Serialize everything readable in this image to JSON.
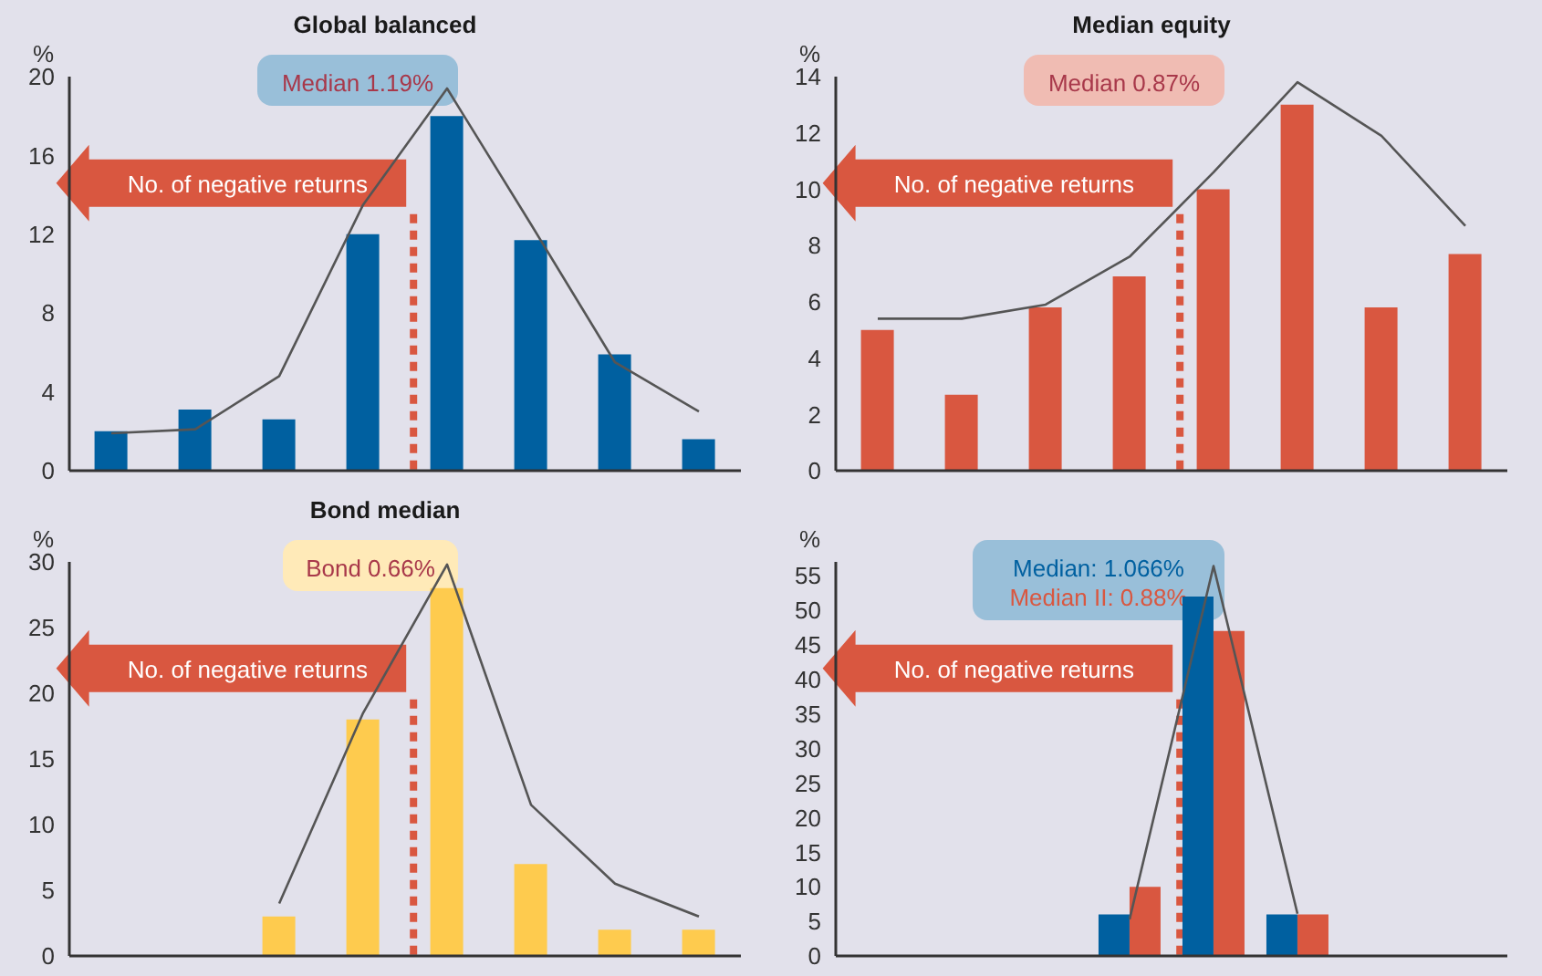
{
  "chart_data": [
    {
      "type": "bar",
      "title": "Global balanced",
      "ylabel": "%",
      "categories": [
        null,
        null,
        null,
        null,
        null,
        null,
        null,
        null
      ],
      "ylim": [
        0,
        20
      ],
      "yticks": [
        0,
        4,
        8,
        12,
        16,
        20
      ],
      "tick_labels": "y",
      "series": [
        {
          "color": "#0060a0",
          "values": [
            2,
            3.1,
            2.6,
            12,
            18,
            11.7,
            5.9,
            1.6
          ]
        },
        {
          "type": "line",
          "color": "#555555",
          "values": [
            1.9,
            2.1,
            4.8,
            13.5,
            19.4,
            12.5,
            5.5,
            3
          ]
        }
      ],
      "annotations": [
        "No. of negative returns",
        "Median 1.19%"
      ]
    },
    {
      "type": "bar",
      "title": "Median equity",
      "ylabel": "%",
      "categories": [
        null,
        null,
        null,
        null,
        null,
        null,
        null,
        null
      ],
      "ylim": [
        0,
        14
      ],
      "yticks": [
        0,
        2,
        4,
        6,
        8,
        10,
        12,
        14
      ],
      "tick_labels": "y",
      "series": [
        {
          "color": "#d95740",
          "values": [
            5,
            2.7,
            5.8,
            6.9,
            10,
            13,
            5.8,
            7.7
          ]
        },
        {
          "type": "line",
          "color": "#555555",
          "values": [
            5.4,
            5.4,
            5.9,
            7.6,
            10.6,
            13.8,
            11.9,
            8.7
          ]
        }
      ],
      "annotations": [
        "No. of negative returns",
        "Median 0.87%"
      ]
    },
    {
      "type": "bar",
      "title": "Bond median",
      "ylabel": "%",
      "categories": [
        null,
        null,
        null,
        null,
        null,
        null,
        null,
        null
      ],
      "ylim": [
        0,
        30
      ],
      "yticks": [
        0,
        5,
        10,
        15,
        20,
        25,
        30
      ],
      "tick_labels": "y",
      "series": [
        {
          "color": "#fecb4e",
          "values": [
            null,
            null,
            3,
            18,
            28,
            7,
            2,
            2
          ]
        },
        {
          "type": "line",
          "color": "#555555",
          "values": [
            null,
            null,
            4,
            18.5,
            29.8,
            11.5,
            5.5,
            3
          ]
        }
      ],
      "annotations": [
        "No. of negative returns",
        "Bond 0.66%"
      ]
    },
    {
      "type": "bar",
      "ylabel": "%",
      "categories": [
        null,
        null,
        null,
        null,
        null,
        null,
        null,
        null
      ],
      "ylim": [
        0,
        57
      ],
      "yticks": [
        0,
        5,
        10,
        15,
        20,
        25,
        30,
        35,
        40,
        45,
        50,
        55
      ],
      "tick_labels": "y",
      "series": [
        {
          "color": "#0060a0",
          "values": [
            null,
            null,
            null,
            6,
            52,
            6,
            null,
            null
          ]
        },
        {
          "color": "#d95740",
          "values": [
            null,
            null,
            null,
            10,
            47,
            6,
            null,
            null
          ]
        },
        {
          "type": "line",
          "color": "#555555",
          "values": [
            null,
            null,
            null,
            5.3,
            56.4,
            6.1,
            null,
            null
          ]
        }
      ],
      "annotations": [
        "No. of negative returns",
        "Median: 1.066%",
        "Median II: 0.88%"
      ]
    }
  ]
}
